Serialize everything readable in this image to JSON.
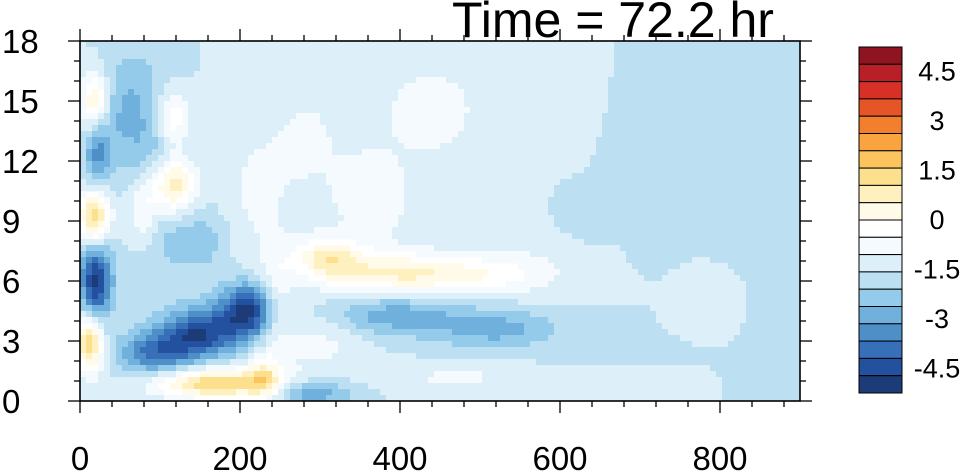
{
  "chart_data": {
    "type": "heatmap",
    "title": "Time = 72.2 hr",
    "xlabel": "",
    "ylabel": "",
    "xlim": [
      0,
      900
    ],
    "ylim": [
      0,
      18
    ],
    "x_ticks": [
      0,
      200,
      400,
      600,
      800
    ],
    "y_ticks": [
      0,
      3,
      6,
      9,
      12,
      15,
      18
    ],
    "colorbar": {
      "min": -5.25,
      "max": 5.25,
      "step": 0.75,
      "labels": [
        "4.5",
        "3",
        "1.5",
        "0",
        "-1.5",
        "-3",
        "-4.5"
      ],
      "label_values": [
        4.5,
        3,
        1.5,
        0,
        -1.5,
        -3,
        -4.5
      ],
      "colors": [
        "#1d3b77",
        "#24519f",
        "#3770b8",
        "#4f8fc8",
        "#6fb0dd",
        "#95cbea",
        "#bcdff2",
        "#ddeff9",
        "#f4fafe",
        "#ffffff",
        "#fffbe8",
        "#fff0c0",
        "#fde08e",
        "#fcc45e",
        "#f9a43e",
        "#f27f2e",
        "#e65528",
        "#d63027",
        "#b81f26",
        "#8d1420"
      ]
    },
    "features": [
      {
        "x": 170,
        "y": 0.9,
        "sx": 55,
        "sy": 0.55,
        "a": 4.5
      },
      {
        "x": 230,
        "y": 1.2,
        "sx": 15,
        "sy": 0.9,
        "a": 2.2
      },
      {
        "x": 290,
        "y": 0.4,
        "sx": 35,
        "sy": 0.45,
        "a": -2.2
      },
      {
        "x": 95,
        "y": 2.4,
        "sx": 32,
        "sy": 0.8,
        "a": -3.2
      },
      {
        "x": 150,
        "y": 3.4,
        "sx": 32,
        "sy": 0.9,
        "a": -4.2
      },
      {
        "x": 210,
        "y": 4.5,
        "sx": 25,
        "sy": 1.0,
        "a": -4.8
      },
      {
        "x": 245,
        "y": 4.8,
        "sx": 14,
        "sy": 1.8,
        "a": 1.4
      },
      {
        "x": 12,
        "y": 2.9,
        "sx": 12,
        "sy": 1.0,
        "a": 4.6
      },
      {
        "x": 20,
        "y": 6.0,
        "sx": 14,
        "sy": 1.4,
        "a": -4.8
      },
      {
        "x": 18,
        "y": 9.2,
        "sx": 13,
        "sy": 1.0,
        "a": 4.6
      },
      {
        "x": 22,
        "y": 12.3,
        "sx": 12,
        "sy": 1.2,
        "a": -2.4
      },
      {
        "x": 18,
        "y": 15.0,
        "sx": 12,
        "sy": 1.0,
        "a": 3.2
      },
      {
        "x": 55,
        "y": 14.5,
        "sx": 22,
        "sy": 2.0,
        "a": -1.5
      },
      {
        "x": 95,
        "y": 12.0,
        "sx": 22,
        "sy": 3.5,
        "a": -1.3
      },
      {
        "x": 80,
        "y": 9.5,
        "sx": 15,
        "sy": 1.2,
        "a": 1.9
      },
      {
        "x": 115,
        "y": 10.8,
        "sx": 20,
        "sy": 1.0,
        "a": 4.0
      },
      {
        "x": 115,
        "y": 14.2,
        "sx": 15,
        "sy": 1.0,
        "a": 2.6
      },
      {
        "x": 150,
        "y": 8.0,
        "sx": 30,
        "sy": 1.2,
        "a": -1.3
      },
      {
        "x": 210,
        "y": 9.5,
        "sx": 30,
        "sy": 3.0,
        "a": 0.7
      },
      {
        "x": 285,
        "y": 13.0,
        "sx": 50,
        "sy": 3.5,
        "a": 0.8
      },
      {
        "x": 310,
        "y": 7.2,
        "sx": 30,
        "sy": 0.7,
        "a": 2.7
      },
      {
        "x": 400,
        "y": 6.4,
        "sx": 70,
        "sy": 0.75,
        "a": 3.0
      },
      {
        "x": 520,
        "y": 6.3,
        "sx": 60,
        "sy": 0.7,
        "a": 1.3
      },
      {
        "x": 390,
        "y": 4.3,
        "sx": 60,
        "sy": 0.7,
        "a": -2.0
      },
      {
        "x": 520,
        "y": 3.6,
        "sx": 55,
        "sy": 0.7,
        "a": -1.8
      },
      {
        "x": 370,
        "y": 10.0,
        "sx": 30,
        "sy": 1.5,
        "a": 1.3
      },
      {
        "x": 440,
        "y": 14.5,
        "sx": 50,
        "sy": 2.0,
        "a": 1.1
      },
      {
        "x": 300,
        "y": 3.0,
        "sx": 40,
        "sy": 1.2,
        "a": 1.0
      },
      {
        "x": 470,
        "y": 1.2,
        "sx": 60,
        "sy": 0.5,
        "a": 0.9
      },
      {
        "x": 560,
        "y": 9.0,
        "sx": 40,
        "sy": 2.0,
        "a": 0.5
      },
      {
        "x": 590,
        "y": 15.0,
        "sx": 30,
        "sy": 1.5,
        "a": 0.6
      },
      {
        "x": 610,
        "y": 9.6,
        "sx": 30,
        "sy": 1.0,
        "a": -0.5
      },
      {
        "x": 760,
        "y": 12.8,
        "sx": 50,
        "sy": 2.0,
        "a": -0.55
      },
      {
        "x": 870,
        "y": 14.0,
        "sx": 40,
        "sy": 2.5,
        "a": -0.45
      },
      {
        "x": 770,
        "y": 5.4,
        "sx": 18,
        "sy": 0.6,
        "a": 0.6
      },
      {
        "x": 720,
        "y": 7.5,
        "sx": 15,
        "sy": 0.5,
        "a": -0.5
      }
    ]
  }
}
